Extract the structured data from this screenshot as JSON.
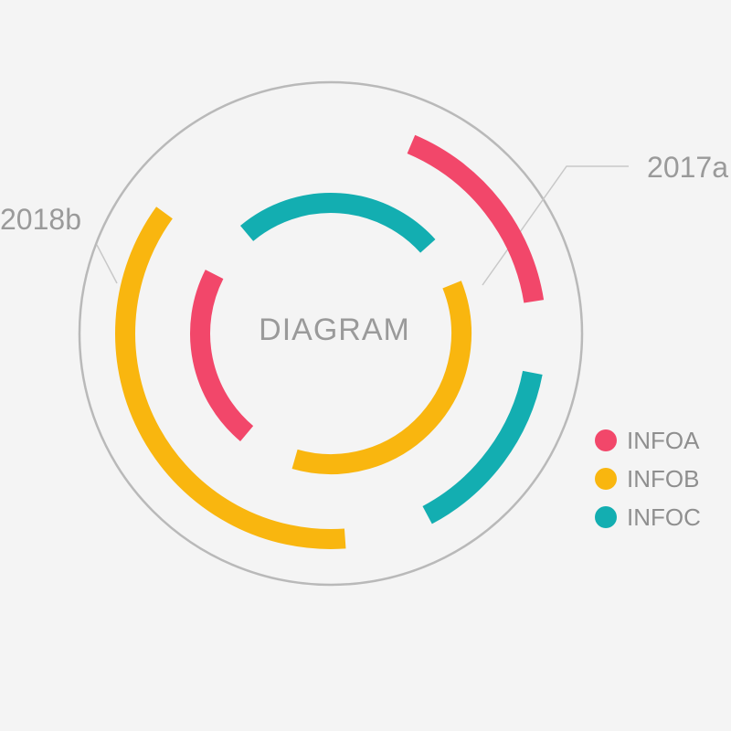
{
  "diagram": {
    "center_label": "DIAGRAM",
    "callouts": [
      {
        "id": "2017a",
        "text": "2017a"
      },
      {
        "id": "2018b",
        "text": "2018b"
      }
    ],
    "legend": [
      {
        "id": "a",
        "text": "INFOA",
        "color": "#f2476a"
      },
      {
        "id": "b",
        "text": "INFOB",
        "color": "#f9b60f"
      },
      {
        "id": "c",
        "text": "INFOC",
        "color": "#13aeb1"
      }
    ],
    "colors": {
      "pink": "#f2476a",
      "orange": "#f9b60f",
      "teal": "#13aeb1",
      "outline": "#b9b9b9",
      "text": "#9a9a9a"
    }
  }
}
